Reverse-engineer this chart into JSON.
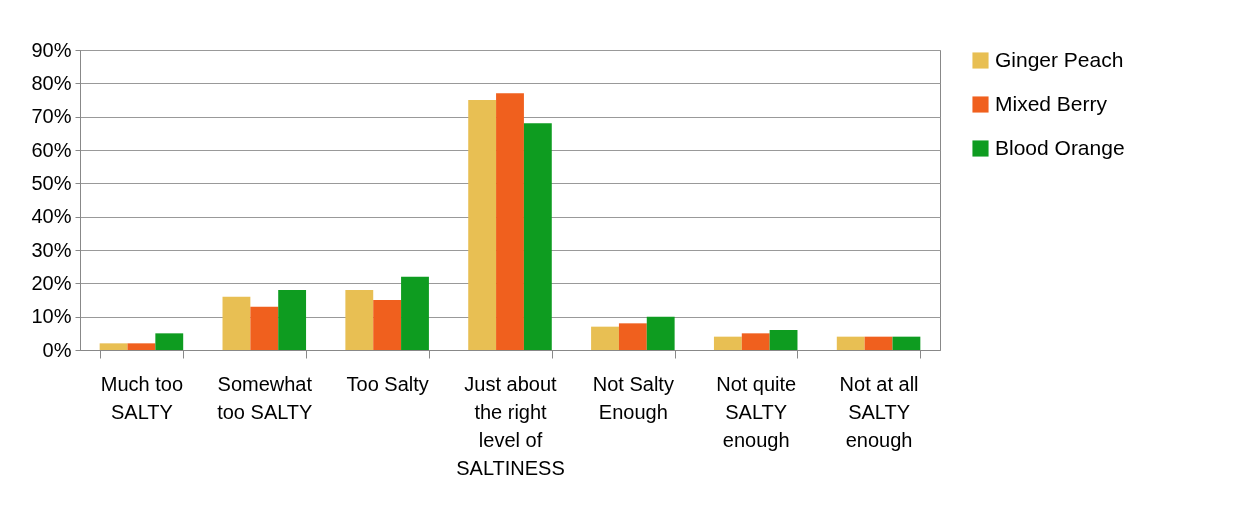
{
  "chart_data": {
    "type": "bar",
    "categories": [
      "Much too SALTY",
      "Somewhat too SALTY",
      "Too Salty",
      "Just about the right level of SALTINESS",
      "Not Salty Enough",
      "Not quite SALTY enough",
      "Not at all SALTY enough"
    ],
    "series": [
      {
        "name": "Ginger Peach",
        "color": "#e8bf53",
        "values": [
          2,
          16,
          18,
          75,
          7,
          4,
          4
        ]
      },
      {
        "name": "Mixed Berry",
        "color": "#f0601e",
        "values": [
          2,
          13,
          15,
          77,
          8,
          5,
          4
        ]
      },
      {
        "name": "Blood Orange",
        "color": "#0e9c20",
        "values": [
          5,
          18,
          22,
          68,
          10,
          6,
          4
        ]
      }
    ],
    "ylim": [
      0,
      90
    ],
    "yticks": [
      {
        "value": 0,
        "label": "0%"
      },
      {
        "value": 10,
        "label": "10%"
      },
      {
        "value": 20,
        "label": "20%"
      },
      {
        "value": 30,
        "label": "30%"
      },
      {
        "value": 40,
        "label": "40%"
      },
      {
        "value": 50,
        "label": "50%"
      },
      {
        "value": 60,
        "label": "60%"
      },
      {
        "value": 70,
        "label": "70%"
      },
      {
        "value": 80,
        "label": "80%"
      },
      {
        "value": 90,
        "label": "90%"
      }
    ],
    "grid": "y",
    "legend": "right"
  }
}
